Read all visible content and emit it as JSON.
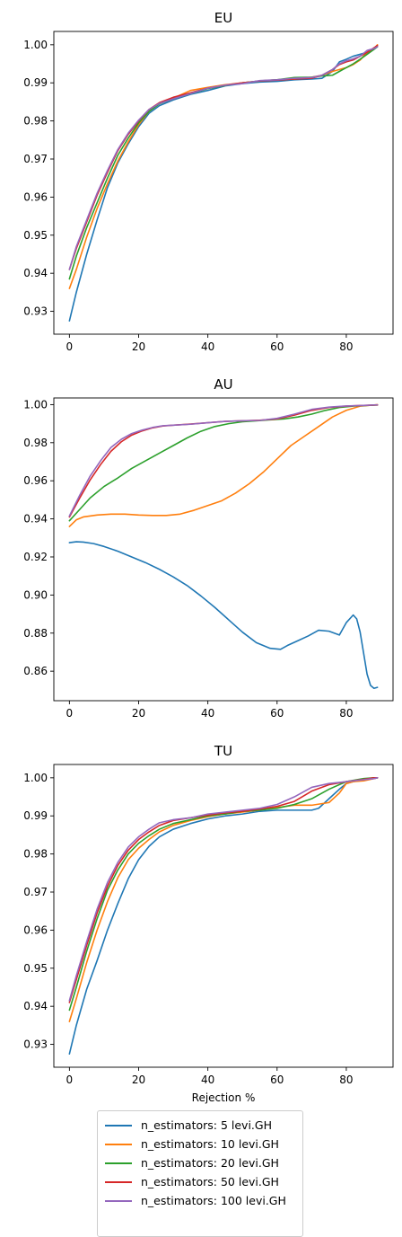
{
  "chart_data": [
    {
      "type": "line",
      "title": "EU",
      "xlabel": "",
      "ylabel": "",
      "xlim": [
        -4.5,
        93.5
      ],
      "ylim": [
        0.924,
        1.0035
      ],
      "x_ticks": [
        0,
        20,
        40,
        60,
        80
      ],
      "y_ticks": [
        0.93,
        0.94,
        0.95,
        0.96,
        0.97,
        0.98,
        0.99,
        1.0
      ],
      "y_tick_labels": [
        "0.93",
        "0.94",
        "0.95",
        "0.96",
        "0.97",
        "0.98",
        "0.99",
        "1.00"
      ],
      "grid": false,
      "series": [
        {
          "name": "n_estimators: 5 levi.GH",
          "color": "#1f77b4",
          "x": [
            0,
            2,
            5,
            8,
            11,
            14,
            17,
            20,
            23,
            26,
            30,
            35,
            40,
            45,
            50,
            55,
            60,
            65,
            70,
            73,
            76,
            78,
            80,
            82,
            84,
            86,
            88,
            89
          ],
          "y": [
            0.9275,
            0.935,
            0.945,
            0.954,
            0.9625,
            0.969,
            0.974,
            0.9785,
            0.982,
            0.984,
            0.9855,
            0.987,
            0.988,
            0.9892,
            0.9898,
            0.9902,
            0.9904,
            0.9908,
            0.991,
            0.9912,
            0.993,
            0.9955,
            0.9962,
            0.997,
            0.9975,
            0.998,
            0.9988,
            0.9995
          ]
        },
        {
          "name": "n_estimators: 10 levi.GH",
          "color": "#ff7f0e",
          "x": [
            0,
            2,
            5,
            8,
            11,
            14,
            17,
            20,
            23,
            26,
            30,
            35,
            40,
            45,
            50,
            55,
            60,
            65,
            70,
            73,
            76,
            78,
            80,
            82,
            84,
            86,
            88,
            89
          ],
          "y": [
            0.936,
            0.941,
            0.9495,
            0.957,
            0.9635,
            0.9695,
            0.9745,
            0.979,
            0.9825,
            0.9845,
            0.986,
            0.988,
            0.9888,
            0.9895,
            0.99,
            0.9905,
            0.9908,
            0.991,
            0.9915,
            0.992,
            0.993,
            0.9935,
            0.994,
            0.9948,
            0.996,
            0.998,
            0.999,
            1.0
          ]
        },
        {
          "name": "n_estimators: 20 levi.GH",
          "color": "#2ca02c",
          "x": [
            0,
            2,
            5,
            8,
            11,
            14,
            17,
            20,
            23,
            26,
            30,
            35,
            40,
            45,
            50,
            55,
            60,
            65,
            70,
            73,
            76,
            78,
            80,
            82,
            84,
            86,
            88,
            89
          ],
          "y": [
            0.9385,
            0.9445,
            0.952,
            0.9585,
            0.965,
            0.971,
            0.9755,
            0.9795,
            0.9825,
            0.9845,
            0.9858,
            0.9872,
            0.9885,
            0.9893,
            0.99,
            0.9905,
            0.9908,
            0.9914,
            0.9915,
            0.9918,
            0.992,
            0.993,
            0.994,
            0.995,
            0.9962,
            0.9975,
            0.9988,
            0.9995
          ]
        },
        {
          "name": "n_estimators: 50 levi.GH",
          "color": "#d62728",
          "x": [
            0,
            2,
            5,
            8,
            11,
            14,
            17,
            20,
            23,
            26,
            30,
            35,
            40,
            45,
            50,
            55,
            60,
            65,
            70,
            73,
            76,
            78,
            80,
            82,
            84,
            86,
            88,
            89
          ],
          "y": [
            0.941,
            0.9465,
            0.9535,
            0.9605,
            0.9665,
            0.9722,
            0.9765,
            0.98,
            0.983,
            0.9848,
            0.9862,
            0.9874,
            0.9886,
            0.9894,
            0.99,
            0.9905,
            0.9907,
            0.991,
            0.9912,
            0.992,
            0.9935,
            0.9948,
            0.9955,
            0.996,
            0.997,
            0.998,
            0.9992,
            0.9998
          ]
        },
        {
          "name": "n_estimators: 100 levi.GH",
          "color": "#9467bd",
          "x": [
            0,
            2,
            5,
            8,
            11,
            14,
            17,
            20,
            23,
            26,
            30,
            35,
            40,
            45,
            50,
            55,
            60,
            65,
            70,
            73,
            76,
            78,
            80,
            82,
            84,
            86,
            88,
            89
          ],
          "y": [
            0.941,
            0.947,
            0.954,
            0.961,
            0.967,
            0.9725,
            0.9768,
            0.9802,
            0.983,
            0.9846,
            0.9858,
            0.9872,
            0.9886,
            0.9894,
            0.9898,
            0.9906,
            0.9908,
            0.9912,
            0.9914,
            0.992,
            0.9935,
            0.995,
            0.9958,
            0.9963,
            0.997,
            0.9985,
            0.999,
            0.9995
          ]
        }
      ]
    },
    {
      "type": "line",
      "title": "AU",
      "xlabel": "",
      "ylabel": "",
      "xlim": [
        -4.5,
        93.5
      ],
      "ylim": [
        0.8445,
        1.0035
      ],
      "x_ticks": [
        0,
        20,
        40,
        60,
        80
      ],
      "y_ticks": [
        0.86,
        0.88,
        0.9,
        0.92,
        0.94,
        0.96,
        0.98,
        1.0
      ],
      "y_tick_labels": [
        "0.86",
        "0.88",
        "0.90",
        "0.92",
        "0.94",
        "0.96",
        "0.98",
        "1.00"
      ],
      "grid": false,
      "series": [
        {
          "name": "n_estimators: 5 levi.GH",
          "color": "#1f77b4",
          "x": [
            0,
            2,
            4,
            7,
            10,
            14,
            18,
            22,
            26,
            30,
            34,
            38,
            42,
            46,
            50,
            54,
            58,
            61,
            63,
            66,
            69,
            72,
            75,
            78,
            80,
            82,
            83,
            84,
            85,
            86,
            87,
            88,
            89
          ],
          "y": [
            0.9275,
            0.928,
            0.9278,
            0.927,
            0.9255,
            0.923,
            0.92,
            0.917,
            0.9135,
            0.9095,
            0.905,
            0.8995,
            0.8935,
            0.887,
            0.8805,
            0.875,
            0.872,
            0.8715,
            0.8735,
            0.876,
            0.8785,
            0.8815,
            0.881,
            0.879,
            0.8855,
            0.8895,
            0.8875,
            0.8805,
            0.8695,
            0.8585,
            0.8525,
            0.851,
            0.8515
          ]
        },
        {
          "name": "n_estimators: 10 levi.GH",
          "color": "#ff7f0e",
          "x": [
            0,
            2,
            4,
            8,
            12,
            16,
            20,
            24,
            28,
            32,
            36,
            40,
            44,
            48,
            52,
            56,
            60,
            64,
            68,
            72,
            76,
            80,
            84,
            88,
            89
          ],
          "y": [
            0.936,
            0.9395,
            0.941,
            0.942,
            0.9425,
            0.9425,
            0.942,
            0.9418,
            0.9418,
            0.9425,
            0.9445,
            0.947,
            0.9495,
            0.9535,
            0.9585,
            0.9645,
            0.9715,
            0.9785,
            0.9835,
            0.9885,
            0.9935,
            0.997,
            0.9992,
            0.9998,
            1.0
          ]
        },
        {
          "name": "n_estimators: 20 levi.GH",
          "color": "#2ca02c",
          "x": [
            0,
            3,
            6,
            10,
            14,
            18,
            22,
            26,
            30,
            34,
            38,
            42,
            46,
            50,
            54,
            58,
            62,
            66,
            70,
            74,
            78,
            82,
            86,
            89
          ],
          "y": [
            0.939,
            0.945,
            0.951,
            0.957,
            0.9615,
            0.9665,
            0.9705,
            0.9745,
            0.9785,
            0.9825,
            0.986,
            0.9885,
            0.99,
            0.991,
            0.9915,
            0.992,
            0.9925,
            0.9935,
            0.995,
            0.997,
            0.9985,
            0.9992,
            0.9996,
            0.9998
          ]
        },
        {
          "name": "n_estimators: 50 levi.GH",
          "color": "#d62728",
          "x": [
            0,
            3,
            6,
            9,
            12,
            15,
            18,
            21,
            24,
            27,
            30,
            35,
            40,
            45,
            50,
            55,
            60,
            65,
            70,
            75,
            80,
            85,
            89
          ],
          "y": [
            0.941,
            0.951,
            0.9605,
            0.9685,
            0.9755,
            0.9805,
            0.984,
            0.9862,
            0.9878,
            0.9888,
            0.9892,
            0.9898,
            0.9905,
            0.9912,
            0.9915,
            0.9918,
            0.9925,
            0.9945,
            0.997,
            0.9985,
            0.9992,
            0.9996,
            0.9998
          ]
        },
        {
          "name": "n_estimators: 100 levi.GH",
          "color": "#9467bd",
          "x": [
            0,
            3,
            6,
            9,
            12,
            15,
            18,
            21,
            24,
            27,
            30,
            35,
            40,
            45,
            50,
            55,
            60,
            65,
            70,
            75,
            80,
            85,
            89
          ],
          "y": [
            0.9415,
            0.9525,
            0.9625,
            0.9705,
            0.9775,
            0.9818,
            0.9848,
            0.9866,
            0.988,
            0.9889,
            0.9892,
            0.9897,
            0.9905,
            0.9912,
            0.9915,
            0.9917,
            0.9928,
            0.995,
            0.9975,
            0.9987,
            0.9993,
            0.9996,
            0.9999
          ]
        }
      ]
    },
    {
      "type": "line",
      "title": "TU",
      "xlabel": "Rejection %",
      "ylabel": "",
      "xlim": [
        -4.5,
        93.5
      ],
      "ylim": [
        0.924,
        1.0035
      ],
      "x_ticks": [
        0,
        20,
        40,
        60,
        80
      ],
      "y_ticks": [
        0.93,
        0.94,
        0.95,
        0.96,
        0.97,
        0.98,
        0.99,
        1.0
      ],
      "y_tick_labels": [
        "0.93",
        "0.94",
        "0.95",
        "0.96",
        "0.97",
        "0.98",
        "0.99",
        "1.00"
      ],
      "grid": false,
      "series": [
        {
          "name": "n_estimators: 5 levi.GH",
          "color": "#1f77b4",
          "x": [
            0,
            2,
            5,
            8,
            11,
            14,
            17,
            20,
            23,
            26,
            30,
            35,
            40,
            45,
            50,
            55,
            60,
            65,
            70,
            72,
            75,
            78,
            80,
            82,
            85,
            88,
            89
          ],
          "y": [
            0.9275,
            0.935,
            0.9445,
            0.952,
            0.96,
            0.967,
            0.9735,
            0.9785,
            0.982,
            0.9845,
            0.9865,
            0.988,
            0.9892,
            0.99,
            0.9905,
            0.9912,
            0.9915,
            0.9915,
            0.9915,
            0.992,
            0.9945,
            0.997,
            0.9985,
            0.999,
            0.9995,
            0.9998,
            1.0
          ]
        },
        {
          "name": "n_estimators: 10 levi.GH",
          "color": "#ff7f0e",
          "x": [
            0,
            2,
            5,
            8,
            11,
            14,
            17,
            20,
            23,
            26,
            30,
            35,
            40,
            45,
            50,
            55,
            60,
            65,
            70,
            75,
            78,
            80,
            82,
            85,
            88,
            89
          ],
          "y": [
            0.936,
            0.942,
            0.9515,
            0.96,
            0.9675,
            0.9738,
            0.9785,
            0.9815,
            0.9838,
            0.9858,
            0.9875,
            0.9888,
            0.9898,
            0.9905,
            0.991,
            0.9915,
            0.9922,
            0.9928,
            0.9928,
            0.9935,
            0.996,
            0.9985,
            0.999,
            0.9992,
            0.9998,
            1.0
          ]
        },
        {
          "name": "n_estimators: 20 levi.GH",
          "color": "#2ca02c",
          "x": [
            0,
            2,
            5,
            8,
            11,
            14,
            17,
            20,
            23,
            26,
            30,
            35,
            40,
            45,
            50,
            55,
            60,
            65,
            70,
            75,
            80,
            85,
            88,
            89
          ],
          "y": [
            0.939,
            0.945,
            0.9545,
            0.963,
            0.9705,
            0.9758,
            0.98,
            0.9828,
            0.9848,
            0.9865,
            0.988,
            0.989,
            0.99,
            0.9905,
            0.9912,
            0.9915,
            0.992,
            0.993,
            0.9945,
            0.997,
            0.999,
            0.9998,
            1.0,
            1.0
          ]
        },
        {
          "name": "n_estimators: 50 levi.GH",
          "color": "#d62728",
          "x": [
            0,
            2,
            5,
            8,
            11,
            14,
            17,
            20,
            23,
            26,
            30,
            35,
            40,
            45,
            50,
            55,
            60,
            65,
            70,
            75,
            80,
            85,
            88,
            89
          ],
          "y": [
            0.941,
            0.947,
            0.956,
            0.9645,
            0.9715,
            0.977,
            0.981,
            0.9838,
            0.9858,
            0.9875,
            0.9888,
            0.9895,
            0.9902,
            0.9908,
            0.9912,
            0.9918,
            0.9925,
            0.9938,
            0.9965,
            0.9982,
            0.999,
            0.9996,
            1.0,
            1.0
          ]
        },
        {
          "name": "n_estimators: 100 levi.GH",
          "color": "#9467bd",
          "x": [
            0,
            2,
            5,
            8,
            11,
            14,
            17,
            20,
            23,
            26,
            30,
            35,
            40,
            45,
            50,
            55,
            60,
            65,
            70,
            75,
            80,
            85,
            88,
            89
          ],
          "y": [
            0.9415,
            0.948,
            0.957,
            0.9655,
            0.9725,
            0.9778,
            0.9818,
            0.9845,
            0.9865,
            0.9882,
            0.989,
            0.9895,
            0.9905,
            0.991,
            0.9915,
            0.992,
            0.993,
            0.995,
            0.9975,
            0.9985,
            0.999,
            0.9995,
            0.9998,
            1.0
          ]
        }
      ]
    }
  ],
  "legend": {
    "items": [
      {
        "label": "n_estimators: 5 levi.GH",
        "color": "#1f77b4"
      },
      {
        "label": "n_estimators: 10 levi.GH",
        "color": "#ff7f0e"
      },
      {
        "label": "n_estimators: 20 levi.GH",
        "color": "#2ca02c"
      },
      {
        "label": "n_estimators: 50 levi.GH",
        "color": "#d62728"
      },
      {
        "label": "n_estimators: 100 levi.GH",
        "color": "#9467bd"
      }
    ]
  }
}
